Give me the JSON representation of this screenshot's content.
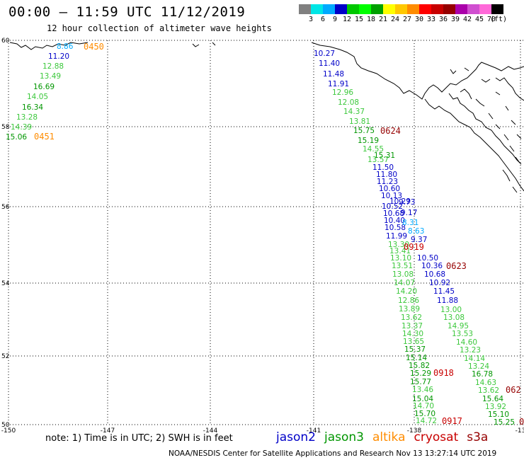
{
  "header": {
    "title": "00:00 – 11:59 UTC 11/12/2019",
    "subtitle": "12 hour collection of altimeter wave heights"
  },
  "colorbar": {
    "colors": [
      "#808080",
      "#00e6e6",
      "#00aaff",
      "#0000c8",
      "#00c800",
      "#00ff00",
      "#00a000",
      "#ffff00",
      "#ffc800",
      "#ff8c00",
      "#ff0000",
      "#c80000",
      "#960000",
      "#aa00aa",
      "#d04fd0",
      "#ff69d9",
      "#000000"
    ],
    "labels": [
      "3",
      "6",
      "9",
      "12",
      "15",
      "18",
      "21",
      "24",
      "27",
      "30",
      "33",
      "36",
      "39",
      "42",
      "45",
      "70",
      "(ft)"
    ]
  },
  "axes": {
    "lat_labels": [
      "60",
      "58",
      "56",
      "54",
      "52",
      "50"
    ],
    "lon_labels": [
      "-150",
      "-147",
      "-144",
      "-141",
      "-138",
      "-13"
    ]
  },
  "tracks": {
    "west": [
      {
        "t": "8.86",
        "c": "#00aaff"
      },
      {
        "t": "11.20",
        "c": "#0000c8"
      },
      {
        "t": "12.88",
        "c": "#3cc83c"
      },
      {
        "t": "13.49",
        "c": "#3cc83c"
      },
      {
        "t": "16.69",
        "c": "#009600"
      },
      {
        "t": "14.05",
        "c": "#3cc83c"
      },
      {
        "t": "16.34",
        "c": "#009600"
      },
      {
        "t": "13.28",
        "c": "#3cc83c"
      },
      {
        "t": "14.39",
        "c": "#3cc83c"
      },
      {
        "t": "15.06",
        "c": "#009600"
      }
    ],
    "west_refs": [
      {
        "t": "0450",
        "c": "#ff8c00"
      },
      {
        "t": "0451",
        "c": "#ff8c00"
      }
    ],
    "jason_blue": [
      {
        "t": "10.27",
        "c": "#0000c8"
      },
      {
        "t": "11.40",
        "c": "#0000c8"
      },
      {
        "t": "11.48",
        "c": "#0000c8"
      },
      {
        "t": "11.91",
        "c": "#0000c8"
      },
      {
        "t": "12.96",
        "c": "#3cc83c"
      },
      {
        "t": "12.08",
        "c": "#3cc83c"
      },
      {
        "t": "14.37",
        "c": "#3cc83c"
      },
      {
        "t": "13.81",
        "c": "#3cc83c"
      },
      {
        "t": "15.75",
        "c": "#009600"
      },
      {
        "t": "15.19",
        "c": "#009600"
      },
      {
        "t": "14.55",
        "c": "#3cc83c"
      },
      {
        "t": "15.31",
        "c": "#009600"
      },
      {
        "t": "13.57",
        "c": "#3cc83c"
      },
      {
        "t": "11.50",
        "c": "#0000c8"
      },
      {
        "t": "11.80",
        "c": "#0000c8"
      },
      {
        "t": "11.23",
        "c": "#0000c8"
      },
      {
        "t": "10.60",
        "c": "#0000c8"
      },
      {
        "t": "10.13",
        "c": "#0000c8"
      },
      {
        "t": "10.29",
        "c": "#0000c8"
      },
      {
        "t": "10.52",
        "c": "#0000c8"
      },
      {
        "t": "10.68",
        "c": "#0000c8"
      },
      {
        "t": "10.40",
        "c": "#0000c8"
      },
      {
        "t": "10.58",
        "c": "#0000c8"
      },
      {
        "t": "11.99",
        "c": "#0000c8"
      },
      {
        "t": "13.30",
        "c": "#3cc83c"
      },
      {
        "t": "13.41",
        "c": "#3cc83c"
      },
      {
        "t": "13.10",
        "c": "#3cc83c"
      },
      {
        "t": "13.51",
        "c": "#3cc83c"
      },
      {
        "t": "13.08",
        "c": "#3cc83c"
      },
      {
        "t": "14.07",
        "c": "#3cc83c"
      },
      {
        "t": "14.20",
        "c": "#3cc83c"
      },
      {
        "t": "12.86",
        "c": "#3cc83c"
      },
      {
        "t": "13.89",
        "c": "#3cc83c"
      },
      {
        "t": "13.62",
        "c": "#3cc83c"
      },
      {
        "t": "13.37",
        "c": "#3cc83c"
      },
      {
        "t": "14.30",
        "c": "#3cc83c"
      },
      {
        "t": "13.65",
        "c": "#3cc83c"
      },
      {
        "t": "15.37",
        "c": "#009600"
      },
      {
        "t": "15.14",
        "c": "#009600"
      },
      {
        "t": "15.82",
        "c": "#009600"
      },
      {
        "t": "15.29",
        "c": "#009600"
      },
      {
        "t": "15.77",
        "c": "#009600"
      },
      {
        "t": "13.46",
        "c": "#3cc83c"
      },
      {
        "t": "15.04",
        "c": "#009600"
      },
      {
        "t": "14.70",
        "c": "#3cc83c"
      },
      {
        "t": "15.70",
        "c": "#009600"
      },
      {
        "t": "14.72",
        "c": "#3cc83c"
      }
    ],
    "jason_refs": [
      {
        "t": "0624",
        "c": "#960000"
      },
      {
        "t": "0918",
        "c": "#c80000"
      },
      {
        "t": "0917",
        "c": "#c80000"
      }
    ],
    "east": [
      {
        "t": "9.73",
        "c": "#0000c8"
      },
      {
        "t": "9.17",
        "c": "#0000c8"
      },
      {
        "t": "8.31",
        "c": "#00aaff"
      },
      {
        "t": "8.63",
        "c": "#00aaff"
      },
      {
        "t": "9.37",
        "c": "#0000c8"
      },
      {
        "t": "10.50",
        "c": "#0000c8"
      },
      {
        "t": "10.36",
        "c": "#0000c8"
      },
      {
        "t": "10.68",
        "c": "#0000c8"
      },
      {
        "t": "10.92",
        "c": "#0000c8"
      },
      {
        "t": "11.45",
        "c": "#0000c8"
      },
      {
        "t": "11.88",
        "c": "#0000c8"
      },
      {
        "t": "13.00",
        "c": "#3cc83c"
      },
      {
        "t": "13.08",
        "c": "#3cc83c"
      },
      {
        "t": "14.95",
        "c": "#3cc83c"
      },
      {
        "t": "13.53",
        "c": "#3cc83c"
      },
      {
        "t": "14.60",
        "c": "#3cc83c"
      },
      {
        "t": "13.23",
        "c": "#3cc83c"
      },
      {
        "t": "14.14",
        "c": "#3cc83c"
      },
      {
        "t": "13.24",
        "c": "#3cc83c"
      },
      {
        "t": "16.78",
        "c": "#009600"
      },
      {
        "t": "14.63",
        "c": "#3cc83c"
      },
      {
        "t": "13.62",
        "c": "#3cc83c"
      },
      {
        "t": "15.64",
        "c": "#009600"
      },
      {
        "t": "13.92",
        "c": "#3cc83c"
      },
      {
        "t": "15.10",
        "c": "#009600"
      },
      {
        "t": "15.25",
        "c": "#009600"
      }
    ],
    "east_refs": [
      {
        "t": "0919",
        "c": "#c80000"
      },
      {
        "t": "0623",
        "c": "#960000"
      },
      {
        "t": "062",
        "c": "#960000"
      },
      {
        "t": "0",
        "c": "#960000"
      }
    ]
  },
  "footer": {
    "note": "note: 1) Time is in UTC; 2) SWH is in feet",
    "legend": [
      {
        "label": "jason2",
        "color": "#0000c8"
      },
      {
        "label": "jason3",
        "color": "#009600"
      },
      {
        "label": "altika",
        "color": "#ff8c00"
      },
      {
        "label": "cryosat",
        "color": "#c80000"
      },
      {
        "label": "s3a",
        "color": "#960000"
      }
    ],
    "credit": "NOAA/NESDIS Center for Satellite Applications and Research     Nov 13 13:27:14 UTC 2019"
  }
}
